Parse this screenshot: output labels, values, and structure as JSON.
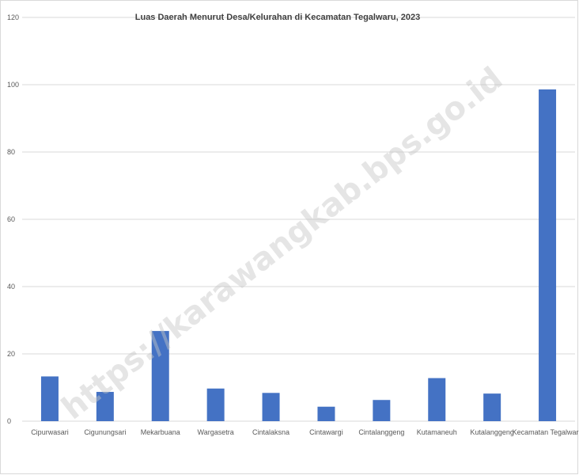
{
  "chart_data": {
    "type": "bar",
    "title": "Luas Daerah Menurut Desa/Kelurahan di Kecamatan Tegalwaru, 2023",
    "xlabel": "",
    "ylabel": "",
    "ylim": [
      0,
      120
    ],
    "yticks": [
      0,
      20,
      40,
      60,
      80,
      100,
      120
    ],
    "grid": true,
    "categories": [
      "Cipurwasari",
      "Cigunungsari",
      "Mekarbuana",
      "Wargasetra",
      "Cintalaksna",
      "Cintawargi",
      "Cintalanggeng",
      "Kutamaneuh",
      "Kutalanggeng",
      "Kecamatan Tegalwaru"
    ],
    "values": [
      13.3,
      8.7,
      26.8,
      9.7,
      8.4,
      4.3,
      6.3,
      12.8,
      8.2,
      98.6
    ],
    "bar_color": "#4472c4"
  },
  "watermark": "https://karawangkab.bps.go.id"
}
